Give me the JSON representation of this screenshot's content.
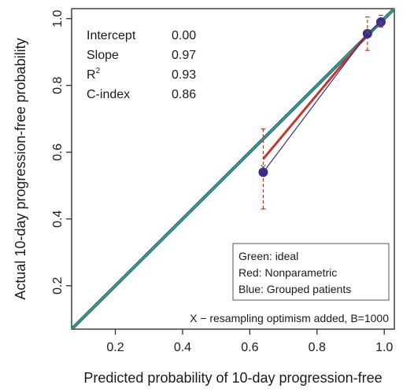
{
  "chart_data": {
    "type": "line",
    "xlabel": "Predicted probability of 10-day progression-free",
    "ylabel": "Actual 10-day progression-free probability",
    "xlim": [
      0.07,
      1.03
    ],
    "ylim": [
      0.07,
      1.03
    ],
    "xticks": [
      "0.2",
      "0.4",
      "0.6",
      "0.8",
      "1.0"
    ],
    "yticks": [
      "0.2",
      "0.4",
      "0.6",
      "0.8",
      "1.0"
    ],
    "grid": false,
    "stats": [
      {
        "label": "Intercept",
        "value": "0.00"
      },
      {
        "label": "Slope",
        "value": "0.97"
      },
      {
        "label": "R",
        "sup": "2",
        "value": "0.93"
      },
      {
        "label": "C-index",
        "value": "0.86"
      }
    ],
    "legend_position": "bottom-right",
    "legend": [
      "Green: ideal",
      "Red: Nonparametric",
      "Blue: Grouped patients"
    ],
    "footnote": "X − resampling optimism added, B=1000",
    "ideal_line": {
      "x": [
        0.07,
        1.03
      ],
      "y": [
        0.07,
        1.03
      ],
      "color": "#3aa37a"
    },
    "nonparametric": {
      "x": [
        0.64,
        0.96
      ],
      "y": [
        0.58,
        0.965
      ],
      "color": "#c0392b"
    },
    "grouped": {
      "x": [
        0.64,
        0.95,
        0.99
      ],
      "y": [
        0.54,
        0.955,
        0.99
      ],
      "ci_lower": [
        0.43,
        0.905,
        0.975
      ],
      "ci_upper": [
        0.67,
        1.005,
        1.01
      ],
      "color": "#3d2a8c"
    },
    "resampling_marks": {
      "x": [
        0.64,
        0.95,
        0.99
      ],
      "y": [
        0.555,
        0.96,
        0.985
      ]
    }
  }
}
